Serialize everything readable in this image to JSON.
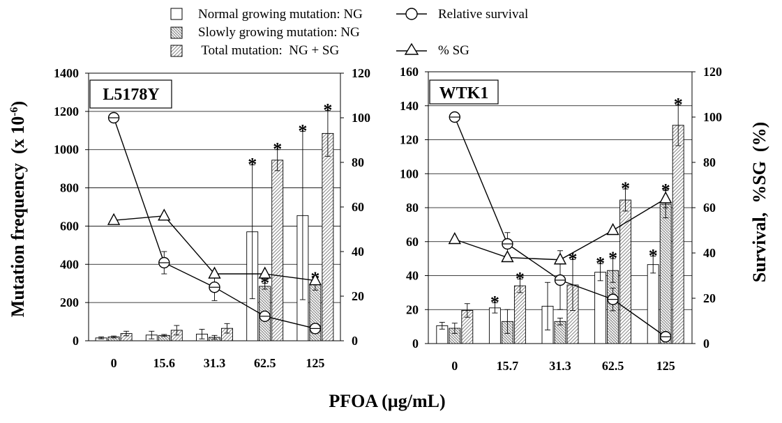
{
  "legend": {
    "ng": "Normal growing mutation: NG",
    "sg": "Slowly growing mutation: NG",
    "total": " Total mutation:  NG + SG",
    "survival": "Relative survival",
    "pct_sg": "% SG"
  },
  "axis_labels": {
    "y_left": "Mutation frequency  (x 10",
    "y_left_sup": "-6",
    "y_left_end": ")",
    "y_right": "Survival,  %SG  (%)",
    "x": "PFOA (µg/mL)"
  },
  "asterisk": "*",
  "colors": {
    "line": "#000000",
    "grid": "#000000",
    "bar_fill": "#ffffff"
  },
  "chart_data": [
    {
      "type": "bar",
      "title": "L5178Y",
      "categories": [
        "0",
        "15.6",
        "31.3",
        "62.5",
        "125"
      ],
      "ylim": [
        0,
        1400
      ],
      "yticks": [
        "0",
        "200",
        "400",
        "600",
        "800",
        "1000",
        "1200",
        "1400"
      ],
      "y2lim": [
        0,
        120
      ],
      "y2ticks": [
        "0",
        "20",
        "40",
        "60",
        "80",
        "100",
        "120"
      ],
      "bars": [
        {
          "name": "Normal growing mutation: NG",
          "pattern": "open",
          "values": [
            15,
            30,
            35,
            570,
            655
          ],
          "errors": [
            5,
            20,
            25,
            350,
            440
          ],
          "significant": [
            false,
            false,
            false,
            true,
            true
          ]
        },
        {
          "name": "Slowly growing mutation: NG",
          "pattern": "dense",
          "values": [
            20,
            28,
            18,
            285,
            295
          ],
          "errors": [
            5,
            5,
            10,
            15,
            30
          ],
          "significant": [
            false,
            false,
            false,
            true,
            true
          ]
        },
        {
          "name": "Total mutation:  NG + SG",
          "pattern": "diagonal",
          "values": [
            38,
            55,
            65,
            945,
            1085
          ],
          "errors": [
            12,
            25,
            25,
            55,
            120
          ],
          "significant": [
            false,
            false,
            false,
            true,
            true
          ]
        }
      ],
      "lines": [
        {
          "name": "Relative survival",
          "marker": "circle",
          "values": [
            100,
            35,
            24,
            11,
            5.5
          ],
          "errors": [
            0,
            5,
            6,
            2,
            1
          ]
        },
        {
          "name": "% SG",
          "marker": "triangle",
          "values": [
            54,
            56,
            30,
            30,
            27
          ],
          "errors": [
            0,
            0,
            0,
            0,
            0
          ]
        }
      ]
    },
    {
      "type": "bar",
      "title": "WTK1",
      "categories": [
        "0",
        "15.7",
        "31.3",
        "62.5",
        "125"
      ],
      "ylim": [
        0,
        160
      ],
      "yticks": [
        "0",
        "20",
        "40",
        "60",
        "80",
        "100",
        "120",
        "140",
        "160"
      ],
      "y2lim": [
        0,
        120
      ],
      "y2ticks": [
        "0",
        "20",
        "40",
        "60",
        "80",
        "100",
        "120"
      ],
      "bars": [
        {
          "name": "Normal growing mutation: NG",
          "pattern": "open",
          "values": [
            10.5,
            21,
            22,
            42,
            46.5
          ],
          "errors": [
            2,
            3,
            14,
            5,
            5
          ],
          "significant": [
            false,
            true,
            false,
            true,
            true
          ]
        },
        {
          "name": "Slowly growing mutation: NG",
          "pattern": "dense",
          "values": [
            9,
            13,
            13,
            43,
            82
          ],
          "errors": [
            3,
            7,
            2,
            7,
            8
          ],
          "significant": [
            false,
            false,
            false,
            true,
            true
          ]
        },
        {
          "name": "Total mutation:  NG + SG",
          "pattern": "diagonal",
          "values": [
            19.5,
            34,
            34.5,
            84.5,
            128.5
          ],
          "errors": [
            4,
            4,
            15,
            6.5,
            12
          ],
          "significant": [
            false,
            true,
            true,
            true,
            true
          ]
        }
      ],
      "lines": [
        {
          "name": "Relative survival",
          "marker": "circle",
          "values": [
            100,
            44,
            28,
            19.5,
            3
          ],
          "errors": [
            0,
            5,
            13,
            5,
            0
          ]
        },
        {
          "name": "% SG",
          "marker": "triangle",
          "values": [
            46,
            38,
            37,
            50,
            64
          ],
          "errors": [
            0,
            0,
            0,
            0,
            4
          ]
        }
      ]
    }
  ]
}
